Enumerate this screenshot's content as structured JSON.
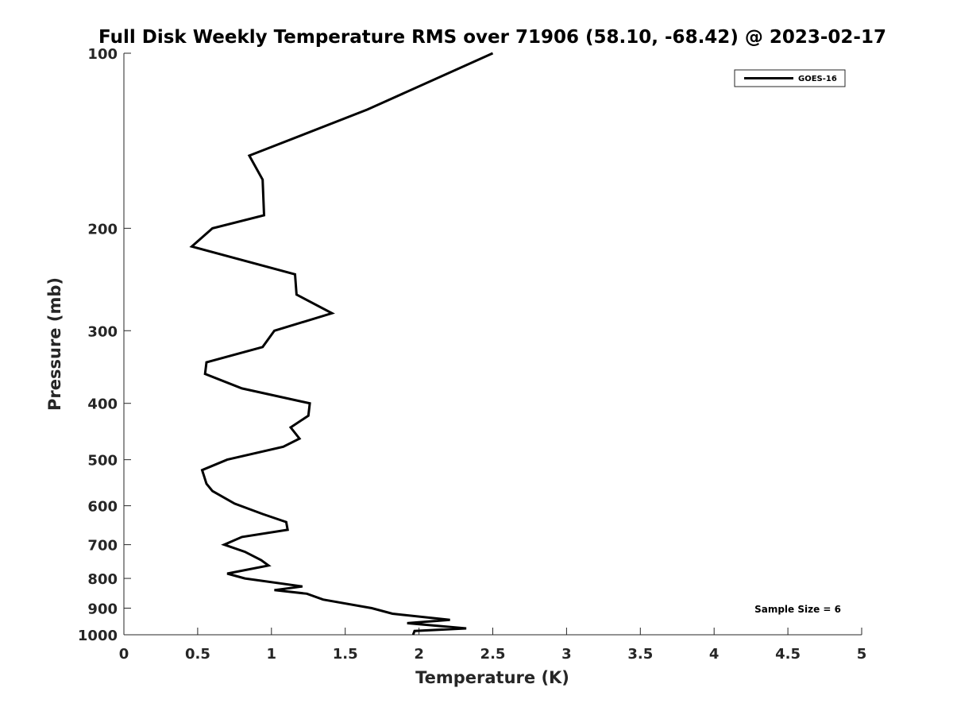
{
  "chart_data": {
    "type": "line",
    "title": "Full Disk Weekly Temperature RMS over 71906 (58.10, -68.42) @ 2023-02-17",
    "xlabel": "Temperature (K)",
    "ylabel": "Pressure (mb)",
    "xlim": [
      0,
      5
    ],
    "ylim": [
      100,
      1000
    ],
    "y_scale": "log",
    "y_reversed": true,
    "x_ticks": [
      "0",
      "0.5",
      "1",
      "1.5",
      "2",
      "2.5",
      "3",
      "3.5",
      "4",
      "4.5",
      "5"
    ],
    "y_ticks": [
      "100",
      "200",
      "300",
      "400",
      "500",
      "600",
      "700",
      "800",
      "900",
      "1000"
    ],
    "grid": false,
    "legend_position": "top-right",
    "series": [
      {
        "name": "GOES-16",
        "color": "#000000",
        "points": [
          [
            2.5,
            100
          ],
          [
            1.65,
            125
          ],
          [
            0.85,
            150
          ],
          [
            0.94,
            165
          ],
          [
            0.95,
            190
          ],
          [
            0.6,
            200
          ],
          [
            0.46,
            215
          ],
          [
            1.16,
            240
          ],
          [
            1.17,
            260
          ],
          [
            1.41,
            280
          ],
          [
            1.02,
            300
          ],
          [
            0.94,
            320
          ],
          [
            0.56,
            340
          ],
          [
            0.55,
            356
          ],
          [
            0.8,
            377
          ],
          [
            1.26,
            400
          ],
          [
            1.25,
            420
          ],
          [
            1.13,
            440
          ],
          [
            1.19,
            460
          ],
          [
            1.08,
            475
          ],
          [
            0.7,
            500
          ],
          [
            0.53,
            521
          ],
          [
            0.56,
            550
          ],
          [
            0.6,
            566
          ],
          [
            0.75,
            595
          ],
          [
            0.94,
            620
          ],
          [
            1.1,
            640
          ],
          [
            1.11,
            660
          ],
          [
            0.8,
            679
          ],
          [
            0.68,
            700
          ],
          [
            0.82,
            720
          ],
          [
            0.93,
            744
          ],
          [
            0.98,
            760
          ],
          [
            0.7,
            785
          ],
          [
            0.82,
            800
          ],
          [
            1.21,
            826
          ],
          [
            1.02,
            838
          ],
          [
            1.24,
            850
          ],
          [
            1.35,
            870
          ],
          [
            1.68,
            900
          ],
          [
            1.82,
            920
          ],
          [
            2.21,
            943
          ],
          [
            1.92,
            955
          ],
          [
            2.32,
            975
          ],
          [
            1.97,
            985
          ],
          [
            1.96,
            1000
          ]
        ]
      }
    ],
    "annotation": "Sample Size = 6"
  }
}
